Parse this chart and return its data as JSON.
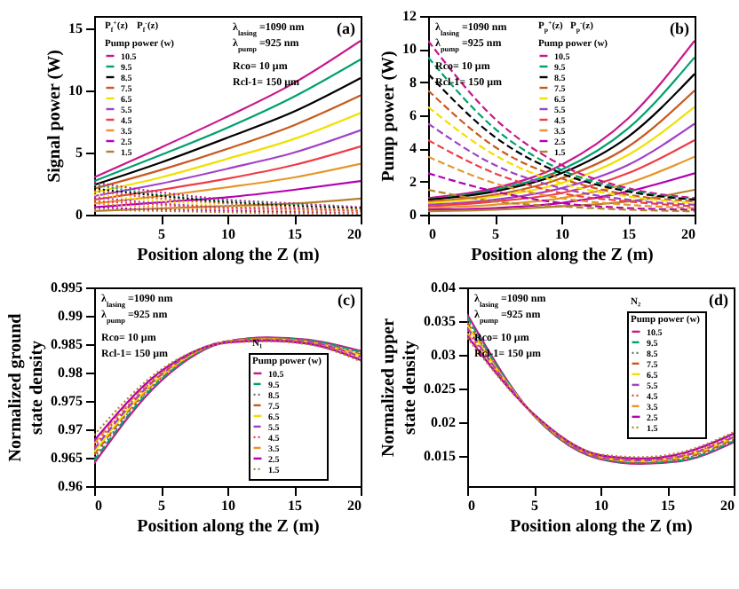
{
  "chart_data": [
    {
      "type": "line",
      "xlabel": "Position along the Z (m)",
      "ylabel": "Signal power (W)",
      "legend_title": "Pump power (w)",
      "legend": "top left",
      "x": [
        0,
        5,
        10,
        15,
        20
      ],
      "xlim": [
        0,
        20
      ],
      "xticks": [
        5,
        10,
        15,
        20
      ],
      "ylim": [
        0,
        16
      ],
      "yticks": [
        0,
        5,
        10,
        15
      ],
      "annotations": [
        "(a)",
        "λ$_{lasing}$ =1090 nm",
        "λ$_{pump}$ =925 nm",
        "Rco= 10 μm",
        "Rcl-1= 150 μm",
        "P$_{f}$$^{+}$(z)",
        "P$_{f}$$^{-}$(z)"
      ],
      "series": [
        {
          "name": "10.5",
          "color": "#c8168c",
          "line_style": "solid",
          "values": [
            3.0,
            5.4,
            7.9,
            10.6,
            14.0
          ]
        },
        {
          "name": "9.5",
          "color": "#00a070",
          "line_style": "solid",
          "values": [
            2.7,
            4.8,
            7.0,
            9.5,
            12.5
          ]
        },
        {
          "name": "8.5",
          "color": "#000000",
          "line_style": "solid",
          "values": [
            2.4,
            4.2,
            6.2,
            8.3,
            11.0
          ]
        },
        {
          "name": "7.5",
          "color": "#c85a1e",
          "line_style": "solid",
          "values": [
            2.1,
            3.6,
            5.3,
            7.2,
            9.6
          ]
        },
        {
          "name": "6.5",
          "color": "#f0e000",
          "line_style": "solid",
          "values": [
            1.8,
            3.0,
            4.5,
            6.1,
            8.2
          ]
        },
        {
          "name": "5.5",
          "color": "#a040c8",
          "line_style": "solid",
          "values": [
            1.5,
            2.5,
            3.7,
            5.0,
            6.8
          ]
        },
        {
          "name": "4.5",
          "color": "#f03c46",
          "line_style": "solid",
          "values": [
            1.2,
            2.0,
            2.9,
            4.0,
            5.5
          ]
        },
        {
          "name": "3.5",
          "color": "#e69628",
          "line_style": "solid",
          "values": [
            0.9,
            1.5,
            2.2,
            3.0,
            4.1
          ]
        },
        {
          "name": "2.5",
          "color": "#b400b4",
          "line_style": "solid",
          "values": [
            0.6,
            1.0,
            1.4,
            2.0,
            2.7
          ]
        },
        {
          "name": "1.5",
          "color": "#b4822d",
          "line_style": "solid",
          "values": [
            0.3,
            0.5,
            0.7,
            0.9,
            1.3
          ]
        },
        {
          "color": "#c8168c",
          "line_style": "dotted",
          "values": [
            2.6,
            1.8,
            1.2,
            0.9,
            0.6
          ]
        },
        {
          "color": "#00a070",
          "line_style": "dotted",
          "values": [
            2.4,
            1.6,
            1.1,
            0.8,
            0.5
          ]
        },
        {
          "color": "#000000",
          "line_style": "dotted",
          "values": [
            2.1,
            1.5,
            1.0,
            0.7,
            0.5
          ]
        },
        {
          "color": "#c85a1e",
          "line_style": "dotted",
          "values": [
            1.9,
            1.3,
            0.9,
            0.6,
            0.4
          ]
        },
        {
          "color": "#f0e000",
          "line_style": "dotted",
          "values": [
            1.6,
            1.1,
            0.7,
            0.5,
            0.4
          ]
        },
        {
          "color": "#a040c8",
          "line_style": "dotted",
          "values": [
            1.4,
            0.9,
            0.6,
            0.5,
            0.3
          ]
        },
        {
          "color": "#f03c46",
          "line_style": "dotted",
          "values": [
            1.1,
            0.8,
            0.5,
            0.4,
            0.3
          ]
        },
        {
          "color": "#e69628",
          "line_style": "dotted",
          "values": [
            0.9,
            0.6,
            0.4,
            0.3,
            0.2
          ]
        },
        {
          "color": "#b400b4",
          "line_style": "dotted",
          "values": [
            0.6,
            0.4,
            0.3,
            0.2,
            0.1
          ]
        },
        {
          "color": "#b4822d",
          "line_style": "dotted",
          "values": [
            0.4,
            0.3,
            0.2,
            0.1,
            0.1
          ]
        }
      ]
    },
    {
      "type": "line",
      "xlabel": "Position along the Z (m)",
      "ylabel": "Pump power (W)",
      "legend_title": "Pump power (w)",
      "legend": "top",
      "x": [
        0,
        5,
        10,
        15,
        20
      ],
      "xlim": [
        0,
        20
      ],
      "xticks": [
        0,
        5,
        10,
        15,
        20
      ],
      "ylim": [
        0,
        12
      ],
      "yticks": [
        0,
        2,
        4,
        6,
        8,
        10,
        12
      ],
      "annotations": [
        "(b)",
        "λ$_{lasing}$ =1090 nm",
        "λ$_{pump}$ =925 nm",
        "Rco= 10 μm",
        "Rcl-1= 150 μm",
        "P$_{p}$$^{+}$(z)",
        "P$_{p}$$^{-}$(z)"
      ],
      "series": [
        {
          "name": "10.5",
          "color": "#c8168c",
          "line_style": "solid",
          "values": [
            1.0,
            1.6,
            3.0,
            5.8,
            10.5
          ]
        },
        {
          "name": "9.5",
          "color": "#00a070",
          "line_style": "solid",
          "values": [
            0.9,
            1.5,
            2.7,
            5.2,
            9.5
          ]
        },
        {
          "name": "8.5",
          "color": "#000000",
          "line_style": "solid",
          "values": [
            0.9,
            1.4,
            2.5,
            4.7,
            8.5
          ]
        },
        {
          "name": "7.5",
          "color": "#c85a1e",
          "line_style": "solid",
          "values": [
            0.8,
            1.2,
            2.2,
            4.1,
            7.5
          ]
        },
        {
          "name": "6.5",
          "color": "#f0e000",
          "line_style": "solid",
          "values": [
            0.7,
            1.1,
            1.9,
            3.6,
            6.5
          ]
        },
        {
          "name": "5.5",
          "color": "#a040c8",
          "line_style": "solid",
          "values": [
            0.6,
            0.9,
            1.6,
            3.0,
            5.5
          ]
        },
        {
          "name": "4.5",
          "color": "#f03c46",
          "line_style": "solid",
          "values": [
            0.5,
            0.8,
            1.3,
            2.5,
            4.5
          ]
        },
        {
          "name": "3.5",
          "color": "#e69628",
          "line_style": "solid",
          "values": [
            0.4,
            0.6,
            1.0,
            1.9,
            3.5
          ]
        },
        {
          "name": "2.5",
          "color": "#b400b4",
          "line_style": "solid",
          "values": [
            0.3,
            0.4,
            0.7,
            1.4,
            2.5
          ]
        },
        {
          "name": "1.5",
          "color": "#b4822d",
          "line_style": "solid",
          "values": [
            0.2,
            0.3,
            0.5,
            0.8,
            1.5
          ]
        },
        {
          "color": "#c8168c",
          "line_style": "dashed",
          "values": [
            10.5,
            5.8,
            3.0,
            1.6,
            1.0
          ]
        },
        {
          "color": "#00a070",
          "line_style": "dashed",
          "values": [
            9.5,
            5.2,
            2.7,
            1.5,
            0.9
          ]
        },
        {
          "color": "#000000",
          "line_style": "dashed",
          "values": [
            8.5,
            4.7,
            2.5,
            1.4,
            0.9
          ]
        },
        {
          "color": "#c85a1e",
          "line_style": "dashed",
          "values": [
            7.5,
            4.1,
            2.2,
            1.2,
            0.8
          ]
        },
        {
          "color": "#f0e000",
          "line_style": "dashed",
          "values": [
            6.5,
            3.6,
            1.9,
            1.1,
            0.7
          ]
        },
        {
          "color": "#a040c8",
          "line_style": "dashed",
          "values": [
            5.5,
            3.0,
            1.6,
            0.9,
            0.6
          ]
        },
        {
          "color": "#f03c46",
          "line_style": "dashed",
          "values": [
            4.5,
            2.5,
            1.3,
            0.8,
            0.5
          ]
        },
        {
          "color": "#e69628",
          "line_style": "dashed",
          "values": [
            3.5,
            1.9,
            1.0,
            0.6,
            0.4
          ]
        },
        {
          "color": "#b400b4",
          "line_style": "dashed",
          "values": [
            2.5,
            1.4,
            0.7,
            0.4,
            0.3
          ]
        },
        {
          "color": "#b4822d",
          "line_style": "dashed",
          "values": [
            1.5,
            0.8,
            0.5,
            0.3,
            0.2
          ]
        }
      ]
    },
    {
      "type": "line",
      "xlabel": "Position along the Z (m)",
      "ylabel": "Normalized ground\nstate density",
      "legend_title": "Pump power (w)",
      "legend": "bottom right",
      "x": [
        0,
        5,
        10,
        13,
        16,
        20
      ],
      "xlim": [
        0,
        20
      ],
      "xticks": [
        0,
        5,
        10,
        15,
        20
      ],
      "ylim": [
        0.96,
        0.995
      ],
      "yticks": [
        0.96,
        0.965,
        0.97,
        0.975,
        0.98,
        0.985,
        0.99,
        0.995
      ],
      "annotations": [
        "(c)",
        "λ$_{lasing}$ =1090 nm",
        "λ$_{pump}$ =925 nm",
        "Rco= 10 μm",
        "Rcl-1= 150 μm",
        "N₁"
      ],
      "series": [
        {
          "name": "10.5",
          "color": "#c8168c",
          "line_style": "solid",
          "values": [
            0.964,
            0.9785,
            0.9855,
            0.9862,
            0.9858,
            0.9838
          ]
        },
        {
          "name": "9.5",
          "color": "#00a070",
          "line_style": "dashed",
          "values": [
            0.9645,
            0.9787,
            0.9855,
            0.9861,
            0.9857,
            0.9836
          ]
        },
        {
          "name": "8.5",
          "color": "#707070",
          "line_style": "dotted",
          "values": [
            0.965,
            0.979,
            0.9855,
            0.9861,
            0.9856,
            0.9834
          ]
        },
        {
          "name": "7.5",
          "color": "#c85a1e",
          "line_style": "dashed",
          "values": [
            0.9655,
            0.9792,
            0.9855,
            0.986,
            0.9855,
            0.9832
          ]
        },
        {
          "name": "6.5",
          "color": "#f0e000",
          "line_style": "solid",
          "values": [
            0.966,
            0.9794,
            0.9855,
            0.9859,
            0.9854,
            0.983
          ]
        },
        {
          "name": "5.5",
          "color": "#a040c8",
          "line_style": "dashed",
          "values": [
            0.9665,
            0.9796,
            0.9855,
            0.9858,
            0.9854,
            0.9828
          ]
        },
        {
          "name": "4.5",
          "color": "#f03c46",
          "line_style": "dotted",
          "values": [
            0.967,
            0.9798,
            0.9854,
            0.9858,
            0.9853,
            0.9826
          ]
        },
        {
          "name": "3.5",
          "color": "#e69628",
          "line_style": "dashed",
          "values": [
            0.9675,
            0.98,
            0.9854,
            0.9857,
            0.9852,
            0.9824
          ]
        },
        {
          "name": "2.5",
          "color": "#b400b4",
          "line_style": "solid",
          "values": [
            0.968,
            0.9802,
            0.9853,
            0.9856,
            0.9851,
            0.9822
          ]
        },
        {
          "name": "1.5",
          "color": "#b4822d",
          "line_style": "dotted",
          "values": [
            0.969,
            0.9805,
            0.9852,
            0.9855,
            0.985,
            0.982
          ]
        }
      ]
    },
    {
      "type": "line",
      "xlabel": "Position along the Z (m)",
      "ylabel": "Normalized upper\nstate density",
      "legend_title": "Pump power (w)",
      "legend": "right",
      "x": [
        0,
        5,
        10,
        13,
        16,
        20
      ],
      "xlim": [
        0,
        20
      ],
      "xticks": [
        0,
        5,
        10,
        15,
        20
      ],
      "ylim": [
        0.0105,
        0.04
      ],
      "yticks": [
        0.015,
        0.02,
        0.025,
        0.03,
        0.035,
        0.04
      ],
      "annotations": [
        "(d)",
        "λ$_{lasing}$ =1090 nm",
        "λ$_{pump}$ =925 nm",
        "Rco= 10 μm",
        "Rcl-1= 150 μm",
        "N₂"
      ],
      "series": [
        {
          "name": "10.5",
          "color": "#c8168c",
          "line_style": "solid",
          "values": [
            0.036,
            0.021,
            0.0145,
            0.0138,
            0.0142,
            0.017
          ]
        },
        {
          "name": "9.5",
          "color": "#00a070",
          "line_style": "dashed",
          "values": [
            0.0356,
            0.021,
            0.0146,
            0.0139,
            0.0143,
            0.0172
          ]
        },
        {
          "name": "8.5",
          "color": "#707070",
          "line_style": "dotted",
          "values": [
            0.0352,
            0.021,
            0.0146,
            0.014,
            0.0145,
            0.0173
          ]
        },
        {
          "name": "7.5",
          "color": "#c85a1e",
          "line_style": "dashed",
          "values": [
            0.0348,
            0.021,
            0.0147,
            0.0141,
            0.0146,
            0.0175
          ]
        },
        {
          "name": "6.5",
          "color": "#f0e000",
          "line_style": "solid",
          "values": [
            0.0344,
            0.0211,
            0.0148,
            0.0142,
            0.0148,
            0.0177
          ]
        },
        {
          "name": "5.5",
          "color": "#a040c8",
          "line_style": "dashed",
          "values": [
            0.034,
            0.0211,
            0.0148,
            0.0143,
            0.0149,
            0.0178
          ]
        },
        {
          "name": "4.5",
          "color": "#f03c46",
          "line_style": "dotted",
          "values": [
            0.0336,
            0.0211,
            0.0149,
            0.0144,
            0.015,
            0.018
          ]
        },
        {
          "name": "3.5",
          "color": "#e69628",
          "line_style": "dashed",
          "values": [
            0.0332,
            0.0211,
            0.015,
            0.0145,
            0.0152,
            0.0182
          ]
        },
        {
          "name": "2.5",
          "color": "#b400b4",
          "line_style": "solid",
          "values": [
            0.0328,
            0.0212,
            0.0151,
            0.0146,
            0.0153,
            0.0183
          ]
        },
        {
          "name": "1.5",
          "color": "#b4822d",
          "line_style": "dotted",
          "values": [
            0.0325,
            0.0212,
            0.0152,
            0.0148,
            0.0155,
            0.0185
          ]
        }
      ]
    }
  ]
}
